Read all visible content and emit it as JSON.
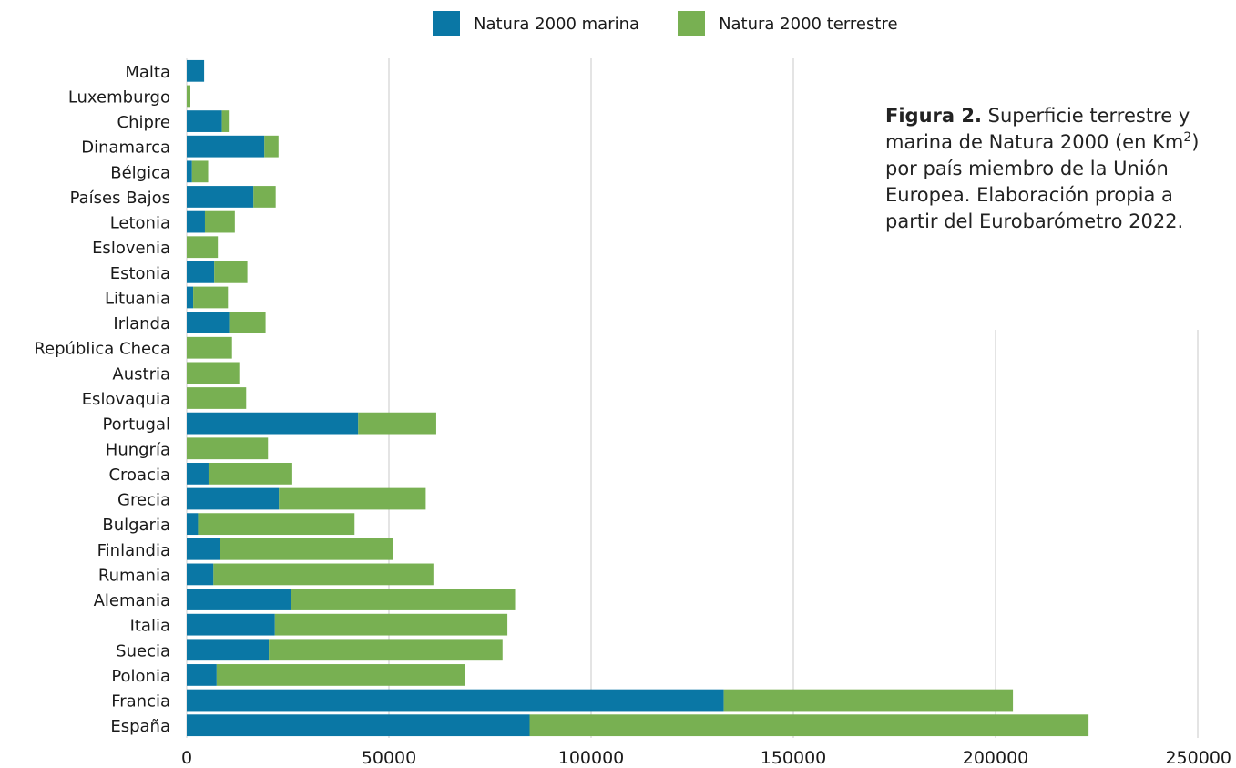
{
  "colors": {
    "marina": "#0a77a5",
    "terrestre": "#78b052",
    "grid": "#c8c8c8"
  },
  "legend": [
    {
      "label": "Natura 2000 marina",
      "color": "#0a77a5"
    },
    {
      "label": "Natura 2000 terrestre",
      "color": "#78b052"
    }
  ],
  "caption": {
    "bold": "Figura 2.",
    "line1": " Superficie terrestre y",
    "line2a": "marina de Natura 2000 (en Km",
    "sup": "2",
    "line2b": ")",
    "line3": "por país miembro de la Unión",
    "line4": "Europea. Elaboración propia a",
    "line5": "partir del Eurobarómetro 2022."
  },
  "chart_data": {
    "type": "bar",
    "orientation": "horizontal",
    "stacked": true,
    "categories": [
      "Malta",
      "Luxemburgo",
      "Chipre",
      "Dinamarca",
      "Bélgica",
      "Países Bajos",
      "Letonia",
      "Eslovenia",
      "Estonia",
      "Lituania",
      "Irlanda",
      "República Checa",
      "Austria",
      "Eslovaquia",
      "Portugal",
      "Hungría",
      "Croacia",
      "Grecia",
      "Bulgaria",
      "Finlandia",
      "Rumania",
      "Alemania",
      "Italia",
      "Suecia",
      "Polonia",
      "Francia",
      "España"
    ],
    "series": [
      {
        "name": "Natura 2000 marina",
        "color": "#0a77a5",
        "values": [
          4300,
          0,
          8700,
          19200,
          1300,
          16500,
          4500,
          0,
          6800,
          1600,
          10500,
          0,
          0,
          0,
          42400,
          0,
          5400,
          22800,
          2800,
          8300,
          6600,
          25800,
          21800,
          20300,
          7400,
          132800,
          84800
        ]
      },
      {
        "name": "Natura 2000 terrestre",
        "color": "#78b052",
        "values": [
          0,
          900,
          1700,
          3500,
          4000,
          5500,
          7400,
          7700,
          8200,
          8600,
          9000,
          11200,
          13000,
          14700,
          19300,
          20100,
          20700,
          36300,
          38700,
          42700,
          54400,
          55400,
          57500,
          57800,
          61300,
          71500,
          138200
        ]
      }
    ],
    "xticks": [
      "0",
      "50000",
      "100000",
      "150000",
      "200000",
      "250000"
    ],
    "xlim": [
      0,
      250000
    ],
    "grid": "vertical",
    "legend_position": "top"
  }
}
